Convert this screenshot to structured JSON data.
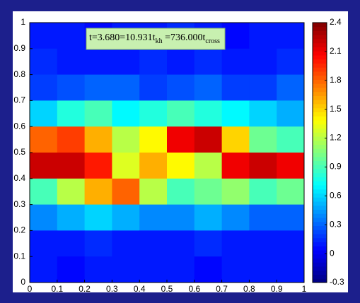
{
  "chart_data": {
    "type": "heatmap",
    "annotation": {
      "parts": [
        "t=3.680=10.931t",
        "kh",
        " =736.000t",
        "cross"
      ]
    },
    "x": [
      0.05,
      0.15,
      0.25,
      0.35,
      0.45,
      0.55,
      0.65,
      0.75,
      0.85,
      0.95
    ],
    "y": [
      0.95,
      0.85,
      0.75,
      0.65,
      0.55,
      0.45,
      0.35,
      0.25,
      0.15,
      0.05
    ],
    "z": [
      [
        0.1,
        0.1,
        0.05,
        0.1,
        0.1,
        0.15,
        0.1,
        0.05,
        0.1,
        0.1
      ],
      [
        0.15,
        0.1,
        0.1,
        0.1,
        0.15,
        0.1,
        0.15,
        0.1,
        0.1,
        0.15
      ],
      [
        0.2,
        0.25,
        0.3,
        0.3,
        0.2,
        0.25,
        0.3,
        0.2,
        0.2,
        0.3
      ],
      [
        0.6,
        0.8,
        0.9,
        0.7,
        0.8,
        0.9,
        0.8,
        0.7,
        0.6,
        0.5
      ],
      [
        1.8,
        1.9,
        1.6,
        1.2,
        1.4,
        2.1,
        2.2,
        1.5,
        1.0,
        0.9
      ],
      [
        2.2,
        2.2,
        2.0,
        1.3,
        1.6,
        1.4,
        1.2,
        2.1,
        2.2,
        2.1
      ],
      [
        0.9,
        1.2,
        1.6,
        1.8,
        1.2,
        0.9,
        1.0,
        1.1,
        0.9,
        1.0
      ],
      [
        0.4,
        0.5,
        0.6,
        0.5,
        0.4,
        0.4,
        0.5,
        0.4,
        0.3,
        0.3
      ],
      [
        0.1,
        0.1,
        0.15,
        0.1,
        0.1,
        0.1,
        0.15,
        0.1,
        0.1,
        0.1
      ],
      [
        0.1,
        0.05,
        0.1,
        0.1,
        0.1,
        0.1,
        0.05,
        0.1,
        0.1,
        0.1
      ]
    ],
    "xlim": [
      0,
      1
    ],
    "ylim": [
      0,
      1
    ],
    "xticks": [
      0,
      0.1,
      0.2,
      0.3,
      0.4,
      0.5,
      0.6,
      0.7,
      0.8,
      0.9,
      1
    ],
    "yticks": [
      0,
      0.1,
      0.2,
      0.3,
      0.4,
      0.5,
      0.6,
      0.7,
      0.8,
      0.9,
      1
    ],
    "clim": [
      -0.3,
      2.4
    ],
    "cticks": [
      -0.3,
      0,
      0.3,
      0.6,
      0.9,
      1.2,
      1.5,
      1.8,
      2.1,
      2.4
    ],
    "colormap": "jet"
  }
}
